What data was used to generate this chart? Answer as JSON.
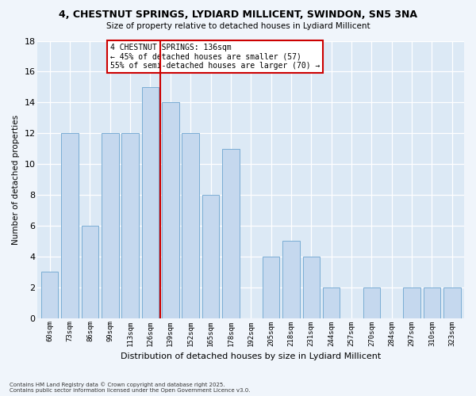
{
  "title": "4, CHESTNUT SPRINGS, LYDIARD MILLICENT, SWINDON, SN5 3NA",
  "subtitle": "Size of property relative to detached houses in Lydiard Millicent",
  "xlabel": "Distribution of detached houses by size in Lydiard Millicent",
  "ylabel": "Number of detached properties",
  "bin_labels": [
    "60sqm",
    "73sqm",
    "86sqm",
    "99sqm",
    "113sqm",
    "126sqm",
    "139sqm",
    "152sqm",
    "165sqm",
    "178sqm",
    "192sqm",
    "205sqm",
    "218sqm",
    "231sqm",
    "244sqm",
    "257sqm",
    "270sqm",
    "284sqm",
    "297sqm",
    "310sqm",
    "323sqm"
  ],
  "bar_values": [
    3,
    12,
    6,
    12,
    12,
    15,
    14,
    12,
    8,
    11,
    0,
    4,
    5,
    4,
    2,
    0,
    2,
    0,
    2,
    2,
    2
  ],
  "bar_color": "#c5d8ee",
  "bar_edge_color": "#7aadd4",
  "vline_color": "#cc0000",
  "ylim": [
    0,
    18
  ],
  "yticks": [
    0,
    2,
    4,
    6,
    8,
    10,
    12,
    14,
    16,
    18
  ],
  "annotation_title": "4 CHESTNUT SPRINGS: 136sqm",
  "annotation_line1": "← 45% of detached houses are smaller (57)",
  "annotation_line2": "55% of semi-detached houses are larger (70) →",
  "annotation_box_facecolor": "#ffffff",
  "annotation_box_edgecolor": "#cc0000",
  "plot_bg_color": "#dce9f5",
  "fig_bg_color": "#f0f5fb",
  "grid_color": "#ffffff",
  "footer1": "Contains HM Land Registry data © Crown copyright and database right 2025.",
  "footer2": "Contains public sector information licensed under the Open Government Licence v3.0."
}
